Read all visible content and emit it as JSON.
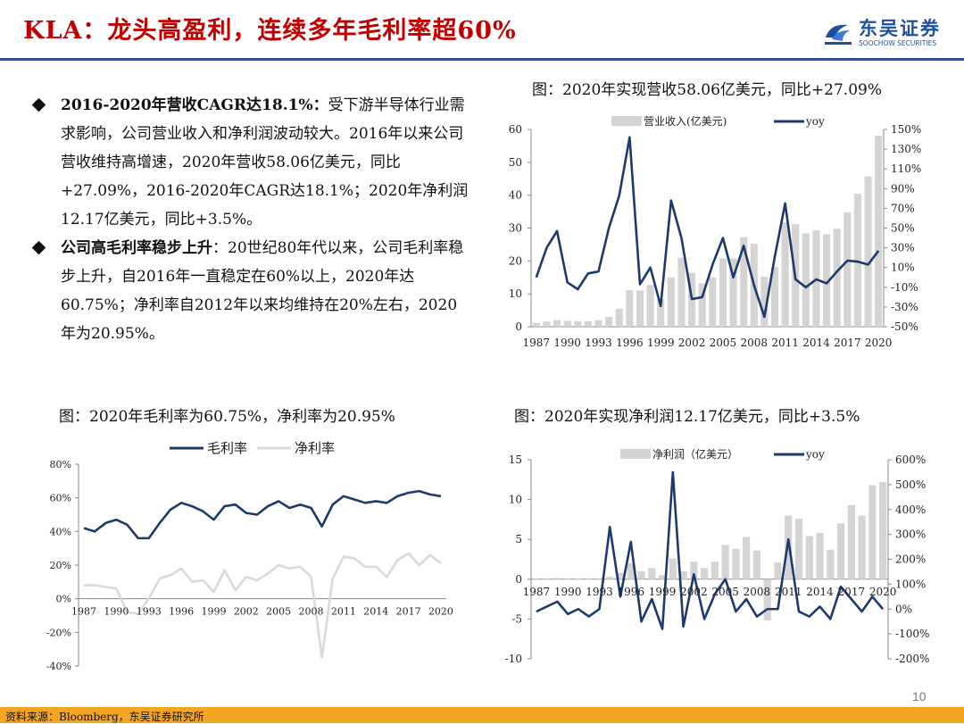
{
  "header": {
    "title": "KLA：龙头高盈利，连续多年毛利率超60%",
    "logo_cn": "东吴证券",
    "logo_en": "SOOCHOW SECURITIES"
  },
  "bullets": [
    {
      "head": "2016-2020年营收CAGR达18.1%：",
      "body": "受下游半导体行业需求影响，公司营业收入和净利润波动较大。2016年以来公司营收维持高增速，2020年营收58.06亿美元，同比+27.09%，2016-2020年CAGR达18.1%；2020年净利润12.17亿美元，同比+3.5%。"
    },
    {
      "head": "公司高毛利率稳步上升",
      "body": "：20世纪80年代以来，公司毛利率稳步上升，自2016年一直稳定在60%以上，2020年达60.75%；净利率自2012年以来均维持在20%左右，2020年为20.95%。"
    }
  ],
  "captions": {
    "revenue": "图：2020年实现营收58.06亿美元，同比+27.09%",
    "margin": "图：2020年毛利率为60.75%，净利率为20.95%",
    "profit": "图：2020年实现净利润12.17亿美元，同比+3.5%"
  },
  "footer": {
    "source": "资料来源：Bloomberg，东吴证券研究所",
    "page": "10"
  },
  "chart_data": [
    {
      "id": "revenue",
      "type": "bar+line",
      "title": "图：2020年实现营收58.06亿美元，同比+27.09%",
      "x": [
        1987,
        1988,
        1989,
        1990,
        1991,
        1992,
        1993,
        1994,
        1995,
        1996,
        1997,
        1998,
        1999,
        2000,
        2001,
        2002,
        2003,
        2004,
        2005,
        2006,
        2007,
        2008,
        2009,
        2010,
        2011,
        2012,
        2013,
        2014,
        2015,
        2016,
        2017,
        2018,
        2019,
        2020
      ],
      "xticks": [
        "1987",
        "1990",
        "1993",
        "1996",
        "1999",
        "2002",
        "2005",
        "2008",
        "2011",
        "2014",
        "2017",
        "2020"
      ],
      "series": [
        {
          "name": "营业收入(亿美元)",
          "kind": "bar",
          "axis": "left",
          "color": "#d4d4d4",
          "values": [
            1.2,
            1.6,
            2.0,
            1.8,
            1.7,
            1.7,
            2.0,
            3.0,
            5.5,
            11.1,
            11.0,
            12.7,
            8.4,
            15.0,
            21.0,
            16.4,
            13.2,
            15.0,
            20.8,
            20.7,
            27.3,
            25.2,
            15.2,
            18.2,
            31.8,
            31.2,
            28.4,
            29.3,
            28.1,
            29.8,
            34.8,
            40.4,
            45.7,
            58.1
          ]
        },
        {
          "name": "yoy",
          "kind": "line",
          "axis": "right",
          "color": "#1c3a6e",
          "values": [
            0,
            0.3,
            0.47,
            -0.05,
            -0.12,
            0.04,
            0.06,
            0.5,
            0.83,
            1.42,
            -0.07,
            0.1,
            -0.29,
            0.78,
            0.4,
            -0.22,
            -0.2,
            0.13,
            0.4,
            0.0,
            0.32,
            -0.08,
            -0.4,
            0.21,
            0.75,
            -0.02,
            -0.1,
            -0.02,
            -0.06,
            0.06,
            0.17,
            0.16,
            0.13,
            0.27
          ]
        }
      ],
      "left_axis": {
        "min": 0,
        "max": 60,
        "ticks": [
          "0",
          "10",
          "20",
          "30",
          "40",
          "50",
          "60"
        ]
      },
      "right_axis": {
        "min": -0.5,
        "max": 1.5,
        "ticks": [
          "-50%",
          "-30%",
          "-10%",
          "10%",
          "30%",
          "50%",
          "70%",
          "90%",
          "110%",
          "130%",
          "150%"
        ]
      }
    },
    {
      "id": "margin",
      "type": "line",
      "title": "图：2020年毛利率为60.75%，净利率为20.95%",
      "x": [
        1987,
        1988,
        1989,
        1990,
        1991,
        1992,
        1993,
        1994,
        1995,
        1996,
        1997,
        1998,
        1999,
        2000,
        2001,
        2002,
        2003,
        2004,
        2005,
        2006,
        2007,
        2008,
        2009,
        2010,
        2011,
        2012,
        2013,
        2014,
        2015,
        2016,
        2017,
        2018,
        2019,
        2020
      ],
      "xticks": [
        "1987",
        "1990",
        "1993",
        "1996",
        "1999",
        "2002",
        "2005",
        "2008",
        "2011",
        "2014",
        "2017",
        "2020"
      ],
      "series": [
        {
          "name": "毛利率",
          "color": "#1c3a6e",
          "values": [
            0.42,
            0.4,
            0.45,
            0.47,
            0.44,
            0.36,
            0.36,
            0.45,
            0.53,
            0.57,
            0.55,
            0.52,
            0.47,
            0.55,
            0.56,
            0.51,
            0.5,
            0.55,
            0.58,
            0.54,
            0.56,
            0.54,
            0.43,
            0.56,
            0.61,
            0.59,
            0.57,
            0.58,
            0.57,
            0.61,
            0.63,
            0.64,
            0.62,
            0.61
          ]
        },
        {
          "name": "净利率",
          "color": "#d9d9d9",
          "values": [
            0.08,
            0.08,
            0.07,
            0.06,
            -0.08,
            -0.09,
            0.0,
            0.12,
            0.14,
            0.18,
            0.1,
            0.11,
            0.04,
            0.17,
            0.05,
            0.13,
            0.11,
            0.15,
            0.2,
            0.18,
            0.19,
            0.13,
            -0.35,
            0.12,
            0.25,
            0.24,
            0.19,
            0.19,
            0.13,
            0.23,
            0.27,
            0.2,
            0.26,
            0.21
          ]
        }
      ],
      "y_axis": {
        "min": -0.4,
        "max": 0.8,
        "ticks": [
          "-40%",
          "-20%",
          "0%",
          "20%",
          "40%",
          "60%",
          "80%"
        ]
      }
    },
    {
      "id": "profit",
      "type": "bar+line",
      "title": "图：2020年实现净利润12.17亿美元，同比+3.5%",
      "x": [
        1987,
        1988,
        1989,
        1990,
        1991,
        1992,
        1993,
        1994,
        1995,
        1996,
        1997,
        1998,
        1999,
        2000,
        2001,
        2002,
        2003,
        2004,
        2005,
        2006,
        2007,
        2008,
        2009,
        2010,
        2011,
        2012,
        2013,
        2014,
        2015,
        2016,
        2017,
        2018,
        2019,
        2020
      ],
      "xticks": [
        "1987",
        "1990",
        "1993",
        "1996",
        "1999",
        "2002",
        "2005",
        "2008",
        "2011",
        "2014",
        "2017",
        "2020"
      ],
      "series": [
        {
          "name": "净利润（亿美元）",
          "kind": "bar",
          "axis": "left",
          "color": "#d4d4d4",
          "values": [
            0.1,
            0.1,
            0.15,
            0.1,
            0.1,
            0.1,
            0.1,
            0.3,
            0.8,
            2.0,
            1.0,
            1.4,
            0.5,
            2.6,
            1.0,
            2.2,
            1.4,
            2.2,
            4.3,
            3.8,
            5.3,
            3.6,
            -5.2,
            2.1,
            8.0,
            7.6,
            5.4,
            5.8,
            3.7,
            7.0,
            9.3,
            8.0,
            11.8,
            12.2
          ]
        },
        {
          "name": "yoy",
          "kind": "line",
          "axis": "right",
          "color": "#1c3a6e",
          "values": [
            -0.1,
            0.1,
            0.3,
            -0.2,
            0.0,
            -0.3,
            0.0,
            3.3,
            0.5,
            2.7,
            -0.5,
            0.4,
            -0.8,
            5.5,
            -0.7,
            1.4,
            -0.4,
            0.6,
            1.2,
            -0.1,
            0.4,
            -0.3,
            0.0,
            0.0,
            2.8,
            -0.1,
            -0.3,
            0.1,
            -0.4,
            0.9,
            0.4,
            -0.1,
            0.5,
            0.0
          ]
        }
      ],
      "left_axis": {
        "min": -10,
        "max": 15,
        "ticks": [
          "-10",
          "-5",
          "0",
          "5",
          "10",
          "15"
        ]
      },
      "right_axis": {
        "min": -2,
        "max": 6,
        "ticks": [
          "-200%",
          "-100%",
          "0%",
          "100%",
          "200%",
          "300%",
          "400%",
          "500%",
          "600%"
        ]
      }
    }
  ]
}
